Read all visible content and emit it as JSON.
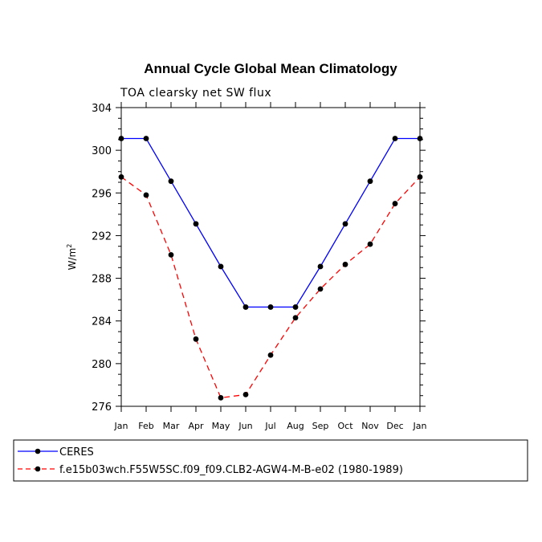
{
  "chart_data": {
    "type": "line",
    "title": "Annual Cycle Global Mean Climatology",
    "subtitle": "TOA clearsky net SW flux",
    "ylabel": "W/m",
    "ylabel_sup": "2",
    "xlabel": "",
    "ylim": [
      276,
      304
    ],
    "yticks": [
      276,
      280,
      284,
      288,
      292,
      296,
      300,
      304
    ],
    "categories": [
      "Jan",
      "Feb",
      "Mar",
      "Apr",
      "May",
      "Jun",
      "Jul",
      "Aug",
      "Sep",
      "Oct",
      "Nov",
      "Dec",
      "Jan"
    ],
    "series": [
      {
        "name": "CERES",
        "color": "#0000ff",
        "dash": "solid",
        "values": [
          301.1,
          301.1,
          297.1,
          293.1,
          289.1,
          285.3,
          285.3,
          285.3,
          289.1,
          293.1,
          297.1,
          301.1,
          301.1
        ]
      },
      {
        "name": "f.e15b03wch.F55W5SC.f09_f09.CLB2-AGW4-M-B-e02 (1980-1989)",
        "color": "#ff0000",
        "dash": "dashed",
        "values": [
          297.5,
          295.8,
          290.2,
          282.3,
          276.8,
          277.1,
          280.8,
          284.3,
          287.0,
          289.3,
          291.2,
          295.0,
          297.5
        ]
      }
    ],
    "legend_position": "bottom",
    "marker_color": "#000000"
  }
}
